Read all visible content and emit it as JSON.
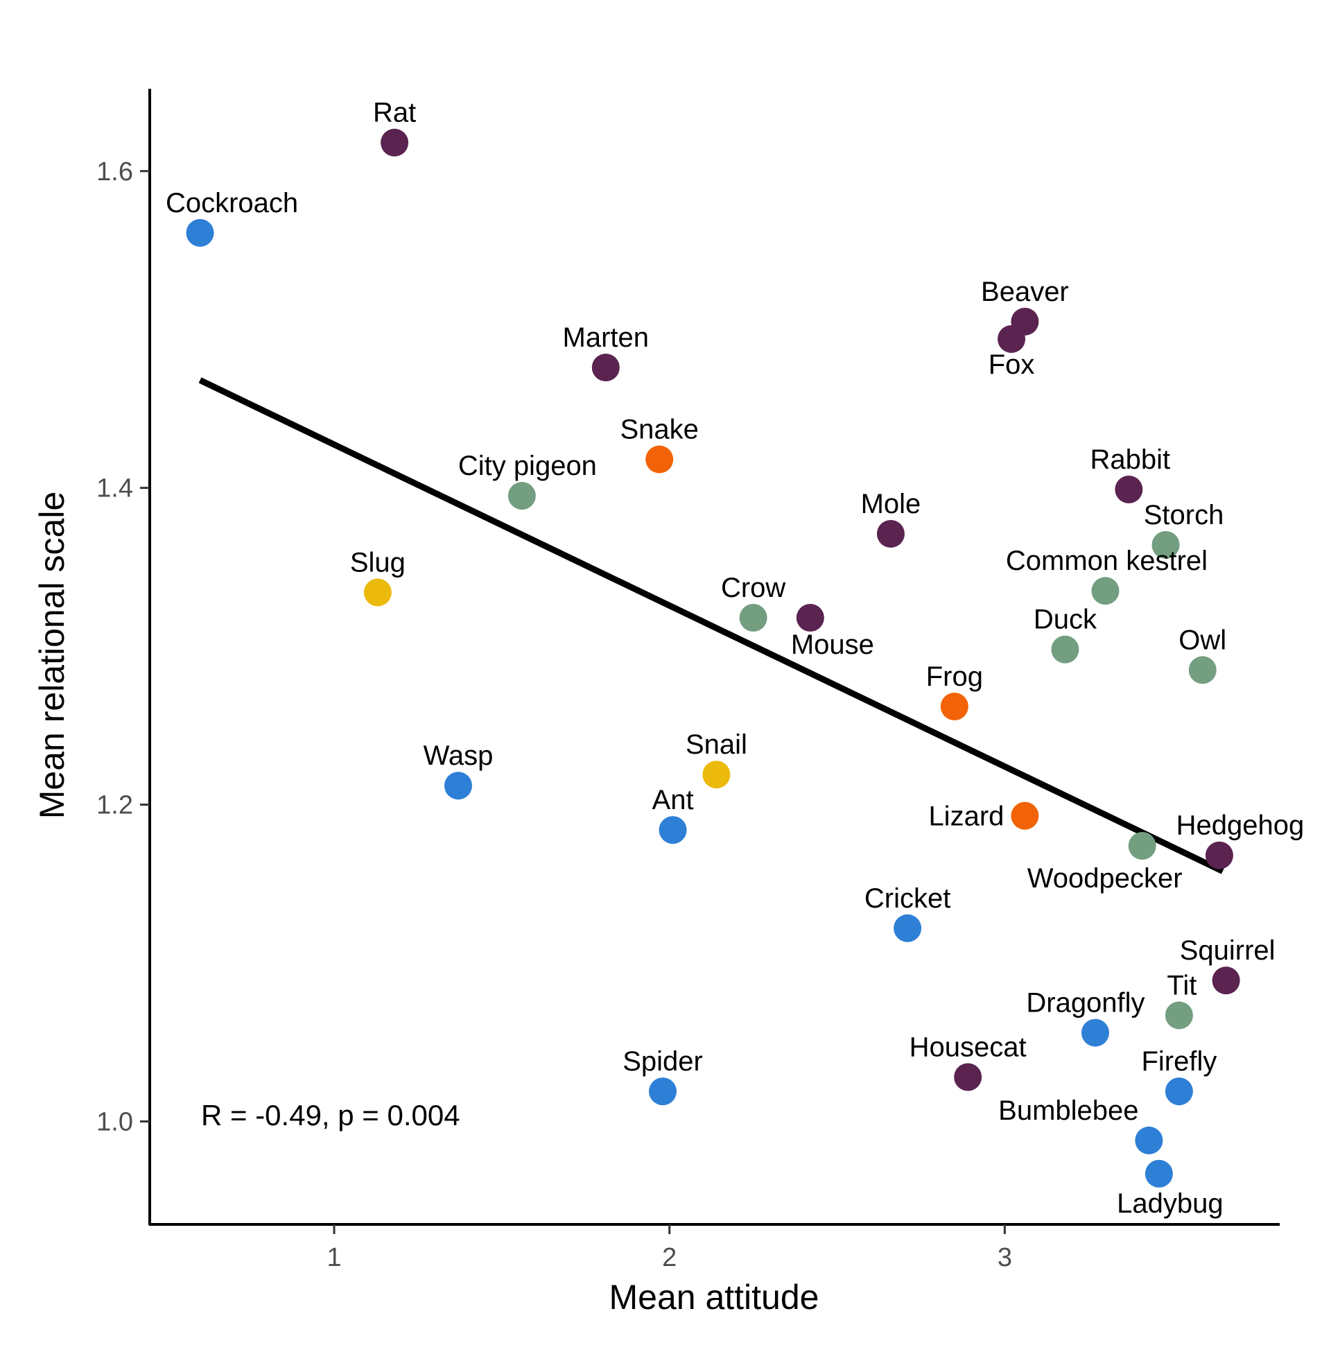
{
  "chart_data": {
    "type": "scatter",
    "xlabel": "Mean attitude",
    "ylabel": "Mean relational scale",
    "xlim": [
      0.45,
      3.82
    ],
    "ylim": [
      0.935,
      1.652
    ],
    "x_ticks": [
      {
        "value": 1,
        "label": "1"
      },
      {
        "value": 2,
        "label": "2"
      },
      {
        "value": 3,
        "label": "3"
      }
    ],
    "y_ticks": [
      {
        "value": 1.0,
        "label": "1.0"
      },
      {
        "value": 1.2,
        "label": "1.2"
      },
      {
        "value": 1.4,
        "label": "1.4"
      },
      {
        "value": 1.6,
        "label": "1.6"
      }
    ],
    "grid": false,
    "legend": "none",
    "annotation": "R = -0.49, p = 0.004",
    "trend_line": {
      "x": [
        0.6,
        3.65
      ],
      "y": [
        1.468,
        1.158
      ]
    },
    "colors": {
      "insect": "#2e7fd6",
      "mammal": "#5a2350",
      "bird": "#739e80",
      "reptile_amphibian": "#f26307",
      "mollusc": "#ebba0c"
    },
    "points": [
      {
        "label": "Rat",
        "x": 1.18,
        "y": 1.618,
        "group": "mammal"
      },
      {
        "label": "Cockroach",
        "x": 0.6,
        "y": 1.561,
        "group": "insect"
      },
      {
        "label": "Beaver",
        "x": 3.06,
        "y": 1.505,
        "group": "mammal"
      },
      {
        "label": "Fox",
        "x": 3.02,
        "y": 1.494,
        "group": "mammal"
      },
      {
        "label": "Marten",
        "x": 1.81,
        "y": 1.476,
        "group": "mammal"
      },
      {
        "label": "Snake",
        "x": 1.97,
        "y": 1.418,
        "group": "reptile_amphibian"
      },
      {
        "label": "City pigeon",
        "x": 1.56,
        "y": 1.395,
        "group": "bird"
      },
      {
        "label": "Rabbit",
        "x": 3.37,
        "y": 1.399,
        "group": "mammal"
      },
      {
        "label": "Mole",
        "x": 2.66,
        "y": 1.371,
        "group": "mammal"
      },
      {
        "label": "Storch",
        "x": 3.48,
        "y": 1.364,
        "group": "bird"
      },
      {
        "label": "Slug",
        "x": 1.13,
        "y": 1.334,
        "group": "mollusc"
      },
      {
        "label": "Common kestrel",
        "x": 3.3,
        "y": 1.335,
        "group": "bird"
      },
      {
        "label": "Crow",
        "x": 2.25,
        "y": 1.318,
        "group": "bird"
      },
      {
        "label": "Mouse",
        "x": 2.42,
        "y": 1.318,
        "group": "mammal"
      },
      {
        "label": "Duck",
        "x": 3.18,
        "y": 1.298,
        "group": "bird"
      },
      {
        "label": "Owl",
        "x": 3.59,
        "y": 1.285,
        "group": "bird"
      },
      {
        "label": "Frog",
        "x": 2.85,
        "y": 1.262,
        "group": "reptile_amphibian"
      },
      {
        "label": "Snail",
        "x": 2.14,
        "y": 1.219,
        "group": "mollusc"
      },
      {
        "label": "Wasp",
        "x": 1.37,
        "y": 1.212,
        "group": "insect"
      },
      {
        "label": "Lizard",
        "x": 3.06,
        "y": 1.193,
        "group": "reptile_amphibian"
      },
      {
        "label": "Ant",
        "x": 2.01,
        "y": 1.184,
        "group": "insect"
      },
      {
        "label": "Woodpecker",
        "x": 3.41,
        "y": 1.174,
        "group": "bird"
      },
      {
        "label": "Hedgehog",
        "x": 3.64,
        "y": 1.168,
        "group": "mammal"
      },
      {
        "label": "Cricket",
        "x": 2.71,
        "y": 1.122,
        "group": "insect"
      },
      {
        "label": "Squirrel",
        "x": 3.66,
        "y": 1.089,
        "group": "mammal"
      },
      {
        "label": "Tit",
        "x": 3.52,
        "y": 1.067,
        "group": "bird"
      },
      {
        "label": "Dragonfly",
        "x": 3.27,
        "y": 1.056,
        "group": "insect"
      },
      {
        "label": "Housecat",
        "x": 2.89,
        "y": 1.028,
        "group": "mammal"
      },
      {
        "label": "Spider",
        "x": 1.98,
        "y": 1.019,
        "group": "insect"
      },
      {
        "label": "Firefly",
        "x": 3.52,
        "y": 1.019,
        "group": "insect"
      },
      {
        "label": "Bumblebee",
        "x": 3.43,
        "y": 0.988,
        "group": "insect"
      },
      {
        "label": "Ladybug",
        "x": 3.46,
        "y": 0.967,
        "group": "insect"
      }
    ]
  }
}
